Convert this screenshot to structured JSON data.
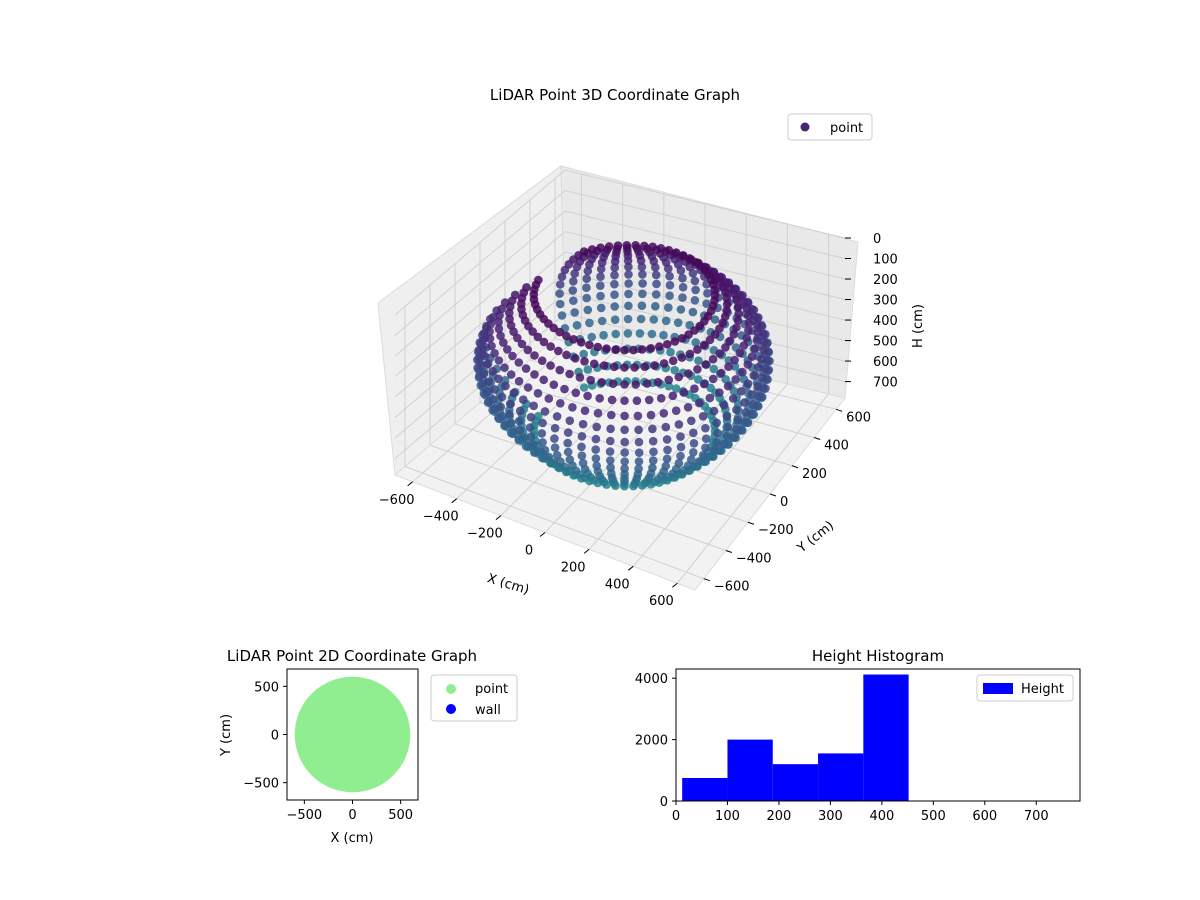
{
  "chart_data": [
    {
      "type": "scatter3d",
      "title": "LiDAR Point 3D Coordinate Graph",
      "xlabel": "X (cm)",
      "ylabel": "Y (cm)",
      "zlabel": "H (cm)",
      "x_ticks": [
        -600,
        -400,
        -200,
        0,
        200,
        400,
        600
      ],
      "y_ticks": [
        -600,
        -400,
        -200,
        0,
        200,
        400,
        600
      ],
      "z_ticks": [
        0,
        100,
        200,
        300,
        400,
        500,
        600,
        700
      ],
      "xlim": [
        -680,
        680
      ],
      "ylim": [
        -680,
        680
      ],
      "zlim": [
        0,
        780
      ],
      "z_inverted": true,
      "grid": true,
      "legend": {
        "placement": "top-right",
        "entries": [
          {
            "label": "point",
            "color": "#482475"
          }
        ]
      },
      "colormap": "viridis",
      "shape": {
        "description_type": "ring of vertical scan arcs",
        "outer_radius": 600,
        "height_range": [
          0,
          780
        ]
      }
    },
    {
      "type": "scatter",
      "title": "LiDAR Point 2D Coordinate Graph",
      "xlabel": "X (cm)",
      "ylabel": "Y (cm)",
      "x_ticks": [
        -500,
        0,
        500
      ],
      "y_ticks": [
        -500,
        0,
        500
      ],
      "xlim": [
        -680,
        680
      ],
      "ylim": [
        -680,
        680
      ],
      "legend": {
        "placement": "outside-right",
        "entries": [
          {
            "label": "point",
            "color": "#90ee90"
          },
          {
            "label": "wall",
            "color": "#0000ff"
          }
        ]
      },
      "point_region": {
        "shape": "disk",
        "radius": 600,
        "center": [
          0,
          0
        ]
      }
    },
    {
      "type": "bar",
      "title": "Height Histogram",
      "xlabel": "",
      "ylabel": "",
      "x_ticks": [
        0,
        100,
        200,
        300,
        400,
        500,
        600,
        700
      ],
      "y_ticks": [
        0,
        2000,
        4000
      ],
      "xlim": [
        0,
        785
      ],
      "ylim": [
        0,
        4300
      ],
      "legend": {
        "placement": "top-right",
        "entries": [
          {
            "label": "Height",
            "color": "#0000ff"
          }
        ]
      },
      "bin_edges": [
        12,
        100,
        188,
        276,
        364,
        452,
        540,
        628,
        716,
        785
      ],
      "counts": [
        750,
        2000,
        1200,
        1550,
        4120,
        0,
        0,
        0,
        0
      ],
      "series": [
        {
          "name": "Height",
          "color": "#0000ff"
        }
      ]
    }
  ]
}
